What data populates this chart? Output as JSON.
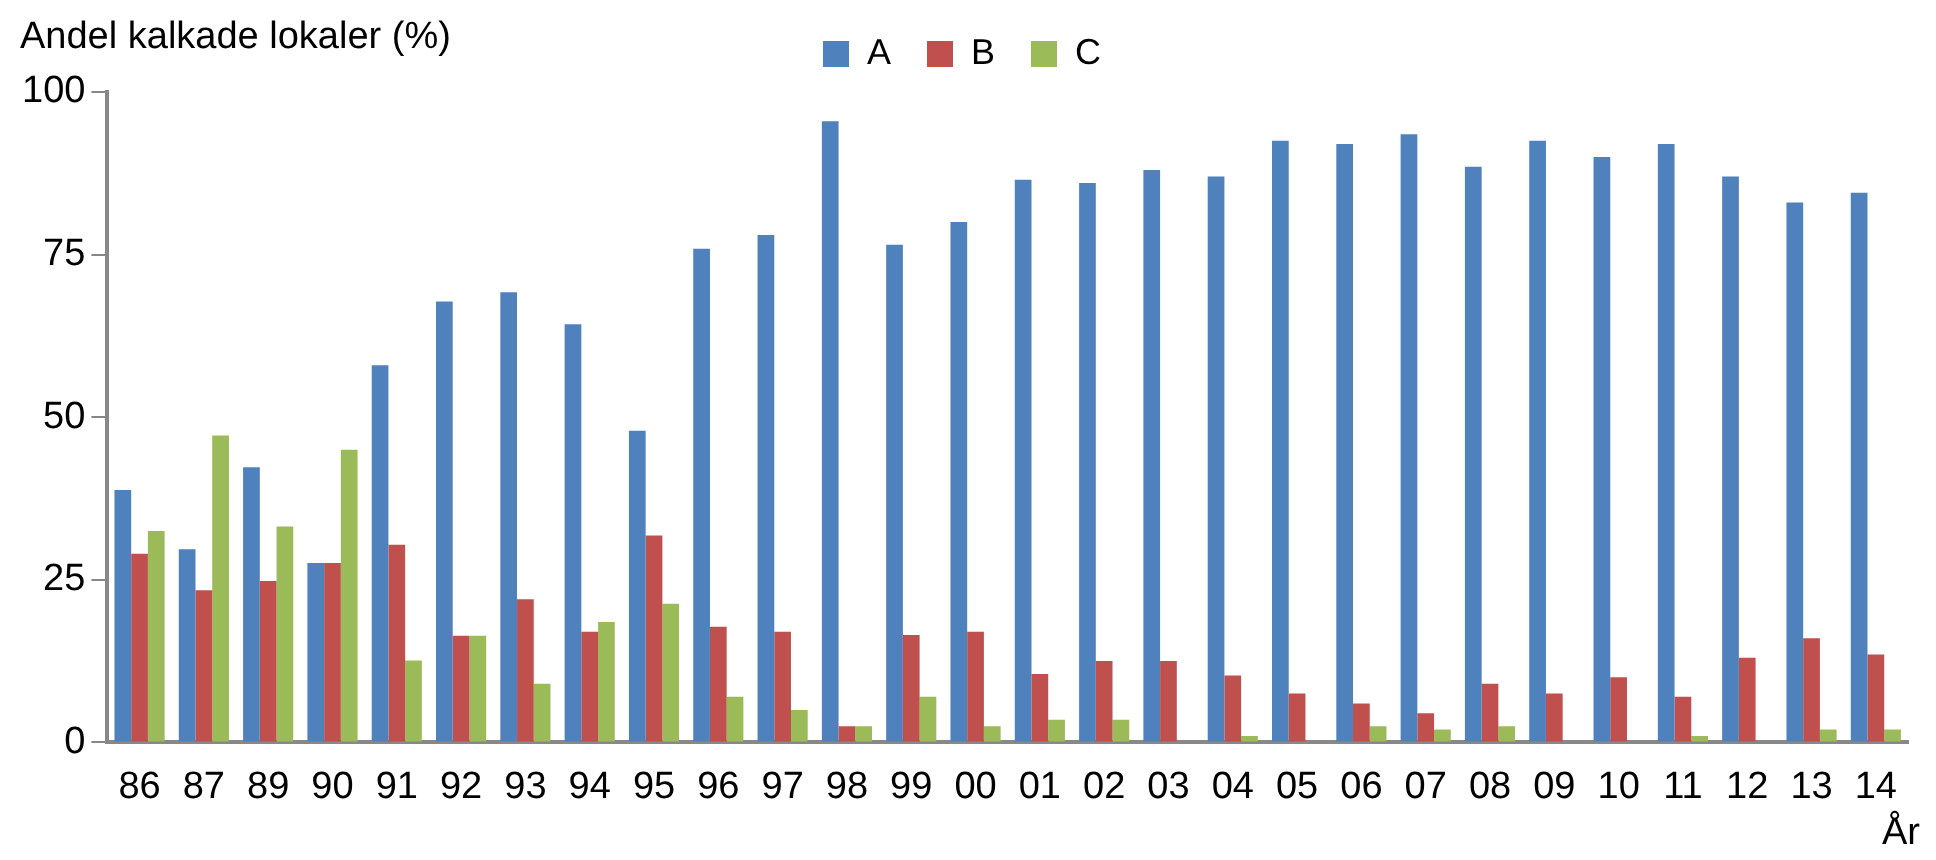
{
  "chart_data": {
    "type": "bar",
    "ylabel": "Andel kalkade lokaler (%)",
    "xlabel": "År",
    "categories": [
      "86",
      "87",
      "89",
      "90",
      "91",
      "92",
      "93",
      "94",
      "95",
      "96",
      "97",
      "98",
      "99",
      "00",
      "01",
      "02",
      "03",
      "04",
      "05",
      "06",
      "07",
      "08",
      "09",
      "10",
      "11",
      "12",
      "13",
      "14"
    ],
    "series": [
      {
        "name": "A",
        "color": "#4f81bd",
        "values": [
          38.8,
          29.7,
          42.3,
          27.6,
          58,
          67.8,
          69.2,
          64.3,
          47.9,
          75.9,
          78,
          95.5,
          76.5,
          80,
          86.5,
          86,
          88,
          87,
          92.5,
          92,
          93.5,
          88.5,
          92.5,
          90,
          92,
          87,
          83,
          84.5
        ]
      },
      {
        "name": "B",
        "color": "#c0504d",
        "values": [
          29,
          23.4,
          24.8,
          27.6,
          30.4,
          16.4,
          22,
          17,
          31.8,
          17.8,
          17,
          2.5,
          16.5,
          17,
          10.5,
          12.5,
          12.5,
          10.3,
          7.5,
          6,
          4.5,
          9,
          7.5,
          10,
          7,
          13,
          16,
          13.5
        ]
      },
      {
        "name": "C",
        "color": "#9bbb59",
        "values": [
          32.5,
          47.2,
          33.2,
          45,
          12.6,
          16.4,
          9,
          18.5,
          21.3,
          7,
          5,
          2.5,
          7,
          2.5,
          3.5,
          3.5,
          0,
          1,
          0,
          2.5,
          2,
          2.5,
          0,
          0,
          1,
          0,
          2,
          2
        ]
      }
    ],
    "ylim": [
      0,
      100
    ],
    "yticks": [
      0,
      25,
      50,
      75,
      100
    ],
    "grid": false,
    "legend": "top"
  }
}
